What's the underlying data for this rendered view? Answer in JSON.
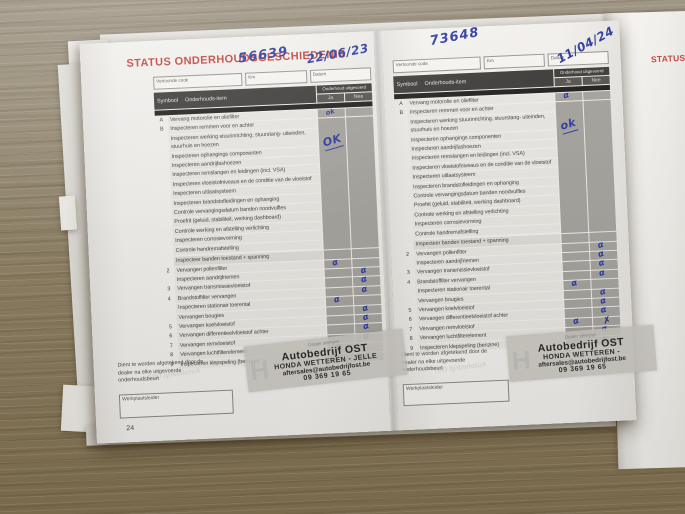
{
  "photo": {
    "title": "STATUS ONDERHOUDSGESCHIEDENIS",
    "next_page_title_fragment": "STATUS",
    "page_number": "24"
  },
  "table": {
    "code_label": "Vertoonde code",
    "km_label": "Km",
    "datum_label": "Datum",
    "header_symbol": "Symbool",
    "header_item": "Onderhouds-item",
    "header_executed": "Onderhoud uitgevoerd",
    "header_yes": "Ja",
    "header_no": "Nee",
    "rows": [
      {
        "sym": "A",
        "lines": [
          "Vervang motorolie en oliefilter"
        ]
      },
      {
        "sym": "B",
        "block": true,
        "lines": [
          "Inspecteren remmen voor en achter",
          "Inspecteren werking stuurinrichting, stuurstang- uiteinden, stuurhuis en hoezen",
          "Inspecteren ophangings componenten",
          "Inspecteren aandrijfashoezen",
          "Inspecteren remslangen en leidingen (incl. VSA)",
          "Inspecteren vloeistofniveaus en de conditie van de vloeistof",
          "Inspecteren uitlaatsysteem",
          "Inspecteren brandstofleidingen en ophanging",
          "Controle vervangingsdatum banden noodvulfles",
          "Proefrit (geluid, stabiliteit, werking dashboard)",
          "Controle werking en afstelling verlichting",
          "Inspecteren corrosievorming",
          "Controle handremafstelling"
        ]
      },
      {
        "sym": "",
        "shaded": true,
        "lines": [
          "Inspecteer banden toestand + spanning"
        ]
      },
      {
        "sym": "2",
        "lines": [
          "Vervangen pollenfilter",
          "Inspecteren aandrijfriemen"
        ]
      },
      {
        "sym": "3",
        "lines": [
          "Vervangen transmissievloeistof"
        ]
      },
      {
        "sym": "4",
        "lines": [
          "Brandstoffilter vervangen",
          "Inspecteren stationair toerental",
          "Vervangen bougies"
        ]
      },
      {
        "sym": "5",
        "lines": [
          "Vervangen koelvloeistof"
        ]
      },
      {
        "sym": "6",
        "lines": [
          "Vervangen differentieelvloeistof achter"
        ]
      },
      {
        "sym": "7",
        "lines": [
          "Vervangen remvloeistof"
        ]
      },
      {
        "sym": "8",
        "lines": [
          "Vervangen luchtfilterelement"
        ]
      },
      {
        "sym": "9",
        "lines": [
          "Inspecteren klepspeling (benzine)"
        ]
      }
    ]
  },
  "footer": {
    "sign_note": "Dient te worden afgetekend door de dealer na elke uitgevoerde onderhoudsbeurt",
    "workshop_label": "Werkplaatsleider",
    "stamp_label": "Dealer stempel",
    "stamp_watermark": "H"
  },
  "pages": [
    {
      "km": "56639",
      "datum": "22/06/23",
      "block_ok": "OK",
      "stamp_lines": [
        "Autobedrijf OST",
        "HONDA WETTEREN - JELLE",
        "aftersales@autobedrijfost.be",
        "09 369 19 65"
      ],
      "marks": [
        {
          "row": 0,
          "line": 0,
          "col": "ja",
          "glyph": "ok",
          "size": "small"
        },
        {
          "row": 3,
          "line": 0,
          "col": "ja",
          "glyph": "α"
        },
        {
          "row": 3,
          "line": 1,
          "col": "nee",
          "glyph": "α"
        },
        {
          "row": 4,
          "line": 0,
          "col": "nee",
          "glyph": "α"
        },
        {
          "row": 5,
          "line": 0,
          "col": "nee",
          "glyph": "α"
        },
        {
          "row": 5,
          "line": 1,
          "col": "ja",
          "glyph": "α"
        },
        {
          "row": 5,
          "line": 2,
          "col": "nee",
          "glyph": "α"
        },
        {
          "row": 6,
          "line": 0,
          "col": "nee",
          "glyph": "α"
        },
        {
          "row": 7,
          "line": 0,
          "col": "nee",
          "glyph": "α"
        },
        {
          "row": 8,
          "line": 0,
          "col": "nee",
          "glyph": "α"
        },
        {
          "row": 9,
          "line": 0,
          "col": "ja",
          "glyph": "α"
        },
        {
          "row": 10,
          "line": 0,
          "col": "nee",
          "glyph": "α"
        }
      ]
    },
    {
      "km": "73648",
      "datum": "11/04/24",
      "block_ok": "ok",
      "stamp_lines": [
        "Autobedrijf OST",
        "HONDA WETTEREN -",
        "aftersales@autobedrijfost.be",
        "09 369 19 65"
      ],
      "marks": [
        {
          "row": 0,
          "line": 0,
          "col": "ja",
          "glyph": "α"
        },
        {
          "row": 3,
          "line": 0,
          "col": "nee",
          "glyph": "α"
        },
        {
          "row": 3,
          "line": 1,
          "col": "nee",
          "glyph": "α"
        },
        {
          "row": 4,
          "line": 0,
          "col": "nee",
          "glyph": "α"
        },
        {
          "row": 5,
          "line": 0,
          "col": "nee",
          "glyph": "α"
        },
        {
          "row": 5,
          "line": 1,
          "col": "ja",
          "glyph": "α"
        },
        {
          "row": 5,
          "line": 2,
          "col": "nee",
          "glyph": "α"
        },
        {
          "row": 6,
          "line": 0,
          "col": "nee",
          "glyph": "α"
        },
        {
          "row": 7,
          "line": 0,
          "col": "nee",
          "glyph": "α"
        },
        {
          "row": 8,
          "line": 0,
          "col": "ja",
          "glyph": "α"
        },
        {
          "row": 8,
          "line": 0,
          "col": "nee",
          "glyph": "✗",
          "size": "bold"
        },
        {
          "row": 9,
          "line": 0,
          "col": "nee",
          "glyph": "α"
        },
        {
          "row": 10,
          "line": 0,
          "col": "nee",
          "glyph": "α"
        }
      ]
    }
  ],
  "colors": {
    "title_red": "#c2423c",
    "ink_blue": "#2c3aa0",
    "header_dark": "#3b3a38",
    "cell_gray": "#a5a39e",
    "wood": "#8d8065"
  }
}
